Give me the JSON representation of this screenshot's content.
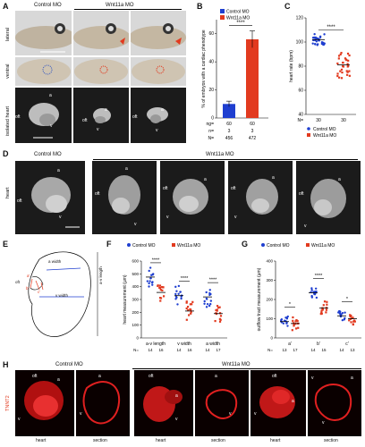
{
  "panels": {
    "A": {
      "label": "A",
      "col_control": "Control MO",
      "col_wnt": "Wnt11a MO",
      "rows": [
        "lateral",
        "ventral",
        "isolated heart"
      ]
    },
    "B": {
      "label": "B"
    },
    "C": {
      "label": "C"
    },
    "D": {
      "label": "D",
      "col_control": "Control MO",
      "col_wnt": "Wnt11a MO",
      "row": "heart"
    },
    "E": {
      "label": "E",
      "outline_labels": {
        "oft": "oft",
        "a_width": "a width",
        "a_prime": "a'",
        "b_prime": "b'",
        "c_prime": "c'",
        "v_width": "v width",
        "av_length": "a-v length"
      }
    },
    "F": {
      "label": "F"
    },
    "G": {
      "label": "G"
    },
    "H": {
      "label": "H",
      "col_control": "Control MO",
      "col_wnt": "Wnt11a MO",
      "marker": "TNNT2",
      "sub_heart": "heart",
      "sub_section": "section"
    }
  },
  "anno": {
    "a": "a",
    "v": "v",
    "oft": "oft"
  },
  "chart_data": [
    {
      "id": "B",
      "type": "bar",
      "categories": [
        "Control MO",
        "Wnt11a MO"
      ],
      "values": [
        10,
        56
      ],
      "errors": [
        2,
        6
      ],
      "colors": [
        "#1f3fd0",
        "#e23a1f"
      ],
      "ylabel": "% of embryos with a cardiac phenotype",
      "ylim": [
        0,
        70
      ],
      "yticks": [
        0,
        20,
        40,
        60
      ],
      "legend": [
        "Control MO",
        "Wnt11a MO"
      ],
      "significance": "****",
      "table": [
        {
          "label": "ng=",
          "values": [
            "60",
            "60"
          ]
        },
        {
          "label": "n=",
          "values": [
            "3",
            "3"
          ]
        },
        {
          "label": "N=",
          "values": [
            "456",
            "472"
          ]
        }
      ]
    },
    {
      "id": "C",
      "type": "scatter",
      "categories": [
        "Control MO",
        "Wnt11a MO"
      ],
      "means": [
        102,
        81
      ],
      "ylabel": "heart rate (bpm)",
      "ylim": [
        40,
        120
      ],
      "yticks": [
        40,
        60,
        80,
        100,
        120
      ],
      "significance": "****",
      "n_label": "N=",
      "n_values": [
        "30",
        "30"
      ],
      "legend": [
        "Control MO",
        "Wnt11a MO"
      ]
    },
    {
      "id": "F",
      "type": "scatter",
      "legend": [
        "Control MO",
        "Wnt11a MO"
      ],
      "groups": [
        "a-v length",
        "v width",
        "a width"
      ],
      "means_control": [
        475,
        330,
        320
      ],
      "means_wnt": [
        355,
        210,
        190
      ],
      "ylabel": "heart measurement (µm)",
      "ylim": [
        0,
        600
      ],
      "yticks": [
        0,
        100,
        200,
        300,
        400,
        500,
        600
      ],
      "significance": [
        "****",
        "****",
        "****"
      ],
      "n_label": "N=",
      "n_values": [
        "14",
        "16",
        "14",
        "16",
        "14",
        "17"
      ]
    },
    {
      "id": "G",
      "type": "scatter",
      "legend": [
        "Control MO",
        "Wnt11a MO"
      ],
      "groups": [
        "a'",
        "b'",
        "c'"
      ],
      "means_control": [
        85,
        235,
        115
      ],
      "means_wnt": [
        75,
        155,
        100
      ],
      "ylabel": "outflow tract measurement (µm)",
      "ylim": [
        0,
        400
      ],
      "yticks": [
        0,
        100,
        200,
        300,
        400
      ],
      "significance": [
        "*",
        "****",
        "*"
      ],
      "n_label": "N=",
      "n_values": [
        "13",
        "17",
        "14",
        "15",
        "14",
        "13"
      ]
    }
  ]
}
